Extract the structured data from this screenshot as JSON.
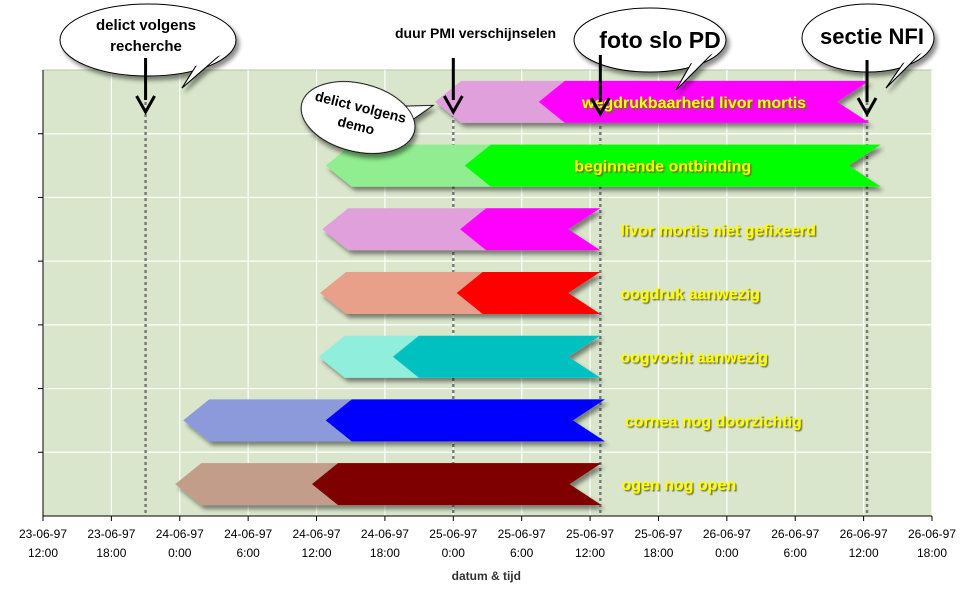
{
  "chart_data": {
    "type": "bar",
    "xlabel": "datum & tijd",
    "x_ticks": [
      {
        "date": "23-06-97",
        "time": "12:00",
        "h": 0
      },
      {
        "date": "23-06-97",
        "time": "18:00",
        "h": 6
      },
      {
        "date": "24-06-97",
        "time": "0:00",
        "h": 12
      },
      {
        "date": "24-06-97",
        "time": "6:00",
        "h": 18
      },
      {
        "date": "24-06-97",
        "time": "12:00",
        "h": 24
      },
      {
        "date": "24-06-97",
        "time": "18:00",
        "h": 30
      },
      {
        "date": "25-06-97",
        "time": "0:00",
        "h": 36
      },
      {
        "date": "25-06-97",
        "time": "6:00",
        "h": 42
      },
      {
        "date": "25-06-97",
        "time": "12:00",
        "h": 48
      },
      {
        "date": "25-06-97",
        "time": "18:00",
        "h": 54
      },
      {
        "date": "26-06-97",
        "time": "0:00",
        "h": 60
      },
      {
        "date": "26-06-97",
        "time": "6:00",
        "h": 66
      },
      {
        "date": "26-06-97",
        "time": "12:00",
        "h": 72
      },
      {
        "date": "26-06-97",
        "time": "18:00",
        "h": 78
      }
    ],
    "x_range_hours": [
      0,
      78
    ],
    "grid": true,
    "plot_background": "#d9e6cb",
    "series": [
      {
        "name": "wegdrukbaarheid livor mortis",
        "outer": [
          34.4,
          72.5
        ],
        "inner": [
          43.5,
          72.5
        ],
        "light": "#e0a0dc",
        "dark": "#ff00ff"
      },
      {
        "name": "beginnende ontbinding",
        "outer": [
          24.8,
          73.5
        ],
        "inner": [
          37.0,
          73.5
        ],
        "light": "#90ee90",
        "dark": "#00ff00"
      },
      {
        "name": "livor mortis niet gefixeerd",
        "outer": [
          24.5,
          48.9
        ],
        "inner": [
          36.6,
          48.9
        ],
        "light": "#e0a0dc",
        "dark": "#ff00ff"
      },
      {
        "name": "oogdruk aanwezig",
        "outer": [
          24.3,
          48.9
        ],
        "inner": [
          36.3,
          48.9
        ],
        "light": "#e9a08a",
        "dark": "#ff0000"
      },
      {
        "name": "oogvocht aanwezig",
        "outer": [
          24.2,
          48.9
        ],
        "inner": [
          30.7,
          48.9
        ],
        "light": "#90eedd",
        "dark": "#00c0c0"
      },
      {
        "name": "cornea nog doorzichtig",
        "outer": [
          12.3,
          49.3
        ],
        "inner": [
          24.8,
          49.3
        ],
        "light": "#8c9adc",
        "dark": "#0000ff"
      },
      {
        "name": "ogen nog open",
        "outer": [
          11.6,
          49.0
        ],
        "inner": [
          23.6,
          49.0
        ],
        "light": "#c29e8a",
        "dark": "#7f0000"
      }
    ],
    "markers": [
      {
        "h": 9.0,
        "label": "delict volgens recherche",
        "style": "callout"
      },
      {
        "h": 36.0,
        "label": "duur PMI verschijnselen",
        "style": "plain"
      },
      {
        "h": 48.9,
        "label": "foto slo PD",
        "style": "callout-large"
      },
      {
        "h": 72.3,
        "label": "sectie NFI",
        "style": "callout-large"
      }
    ],
    "annotations": [
      {
        "label": "delict volgens demo",
        "points_to_h": 36.0
      }
    ]
  },
  "colors": {
    "grid_line": "#ffffff",
    "marker_line": "#777777",
    "label_yellow": "#ffff00",
    "label_shadow": "#7a7a2a",
    "arrow": "#000000"
  }
}
